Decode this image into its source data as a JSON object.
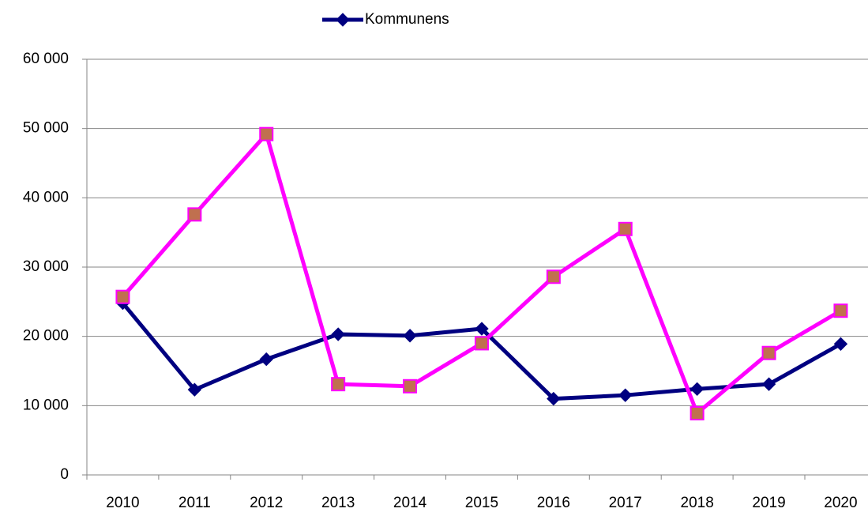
{
  "chart_data": {
    "type": "line",
    "categories": [
      "2010",
      "2011",
      "2012",
      "2013",
      "2014",
      "2015",
      "2016",
      "2017",
      "2018",
      "2019",
      "2020"
    ],
    "series": [
      {
        "name": "Kommunens",
        "color": "#000080",
        "marker": "diamond",
        "marker_fill": "#000080",
        "values": [
          24800,
          12300,
          16700,
          20300,
          20100,
          21100,
          11000,
          11500,
          12400,
          13100,
          18900
        ]
      },
      {
        "color": "#ff00ff",
        "marker": "square",
        "marker_fill": "#c0704f",
        "values": [
          25700,
          37600,
          49200,
          13100,
          12800,
          19000,
          28600,
          35500,
          8900,
          17600,
          23700
        ]
      }
    ],
    "ylim": [
      0,
      60000
    ],
    "yticks": [
      {
        "value": 0,
        "label": "0"
      },
      {
        "value": 10000,
        "label": "10 000"
      },
      {
        "value": 20000,
        "label": "20 000"
      },
      {
        "value": 30000,
        "label": "30 000"
      },
      {
        "value": 40000,
        "label": "40 000"
      },
      {
        "value": 50000,
        "label": "50 000"
      },
      {
        "value": 60000,
        "label": "60 000"
      }
    ],
    "grid": true,
    "legend": "top"
  }
}
